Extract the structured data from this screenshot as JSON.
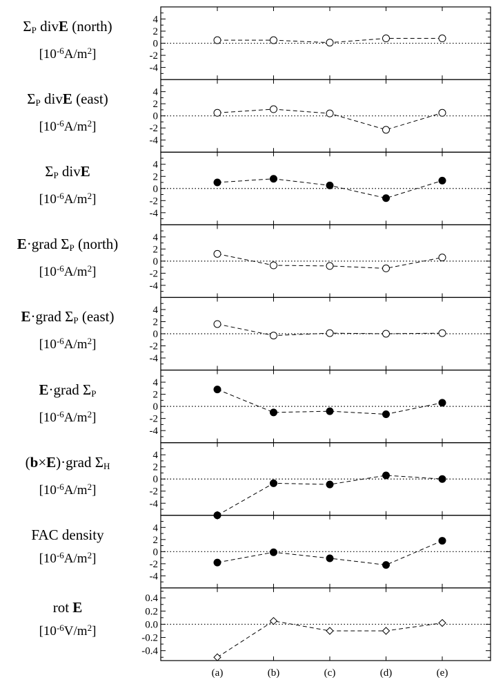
{
  "chart_data": {
    "type": "scatter",
    "categories": [
      "(a)",
      "(b)",
      "(c)",
      "(d)",
      "(e)"
    ],
    "panels": [
      {
        "id": "p1",
        "label": "Σ_P divE (north)",
        "label_parts": {
          "sym": "Σ",
          "sub": "P",
          "pre": " div",
          "bold": "E",
          "post": " (north)"
        },
        "unit": "[10^-6A/m^2]",
        "unit_parts": {
          "a": "[10",
          "sup1": "-6",
          "b": "A/m",
          "sup2": "2",
          "c": "]"
        },
        "ylim": [
          -6,
          6
        ],
        "ticks": [
          "-4",
          "-2",
          "0",
          "2",
          "4"
        ],
        "marker": "open-circle",
        "values": [
          0.5,
          0.5,
          0.1,
          0.8,
          0.8
        ]
      },
      {
        "id": "p2",
        "label": "Σ_P divE (east)",
        "label_parts": {
          "sym": "Σ",
          "sub": "P",
          "pre": " div",
          "bold": "E",
          "post": " (east)"
        },
        "unit": "[10^-6A/m^2]",
        "unit_parts": {
          "a": "[10",
          "sup1": "-6",
          "b": "A/m",
          "sup2": "2",
          "c": "]"
        },
        "ylim": [
          -6,
          6
        ],
        "ticks": [
          "-4",
          "-2",
          "0",
          "2",
          "4"
        ],
        "marker": "open-circle",
        "values": [
          0.5,
          1.1,
          0.4,
          -2.3,
          0.5
        ]
      },
      {
        "id": "p3",
        "label": "Σ_P divE",
        "label_parts": {
          "sym": "Σ",
          "sub": "P",
          "pre": " div",
          "bold": "E",
          "post": ""
        },
        "unit": "[10^-6A/m^2]",
        "unit_parts": {
          "a": "[10",
          "sup1": "-6",
          "b": "A/m",
          "sup2": "2",
          "c": "]"
        },
        "ylim": [
          -6,
          6
        ],
        "ticks": [
          "-4",
          "-2",
          "0",
          "2",
          "4"
        ],
        "marker": "filled-circle",
        "values": [
          1.0,
          1.6,
          0.5,
          -1.6,
          1.3
        ]
      },
      {
        "id": "p4",
        "label": "E·grad Σ_P (north)",
        "label_parts": {
          "bold": "E",
          "pre": "·grad ",
          "sym": "Σ",
          "sub": "P",
          "post": " (north)"
        },
        "unit": "[10^-6A/m^2]",
        "unit_parts": {
          "a": "[10",
          "sup1": "-6",
          "b": "A/m",
          "sup2": "2",
          "c": "]"
        },
        "ylim": [
          -6,
          6
        ],
        "ticks": [
          "-4",
          "-2",
          "0",
          "2",
          "4"
        ],
        "marker": "open-circle",
        "values": [
          1.2,
          -0.7,
          -0.8,
          -1.2,
          0.6
        ]
      },
      {
        "id": "p5",
        "label": "E·grad Σ_P (east)",
        "label_parts": {
          "bold": "E",
          "pre": "·grad ",
          "sym": "Σ",
          "sub": "P",
          "post": " (east)"
        },
        "unit": "[10^-6A/m^2]",
        "unit_parts": {
          "a": "[10",
          "sup1": "-6",
          "b": "A/m",
          "sup2": "2",
          "c": "]"
        },
        "ylim": [
          -6,
          6
        ],
        "ticks": [
          "-4",
          "-2",
          "0",
          "2",
          "4"
        ],
        "marker": "open-circle",
        "values": [
          1.6,
          -0.3,
          0.1,
          0.0,
          0.1
        ]
      },
      {
        "id": "p6",
        "label": "E·grad Σ_P",
        "label_parts": {
          "bold": "E",
          "pre": "·grad ",
          "sym": "Σ",
          "sub": "P",
          "post": ""
        },
        "unit": "[10^-6A/m^2]",
        "unit_parts": {
          "a": "[10",
          "sup1": "-6",
          "b": "A/m",
          "sup2": "2",
          "c": "]"
        },
        "ylim": [
          -6,
          6
        ],
        "ticks": [
          "-4",
          "-2",
          "0",
          "2",
          "4"
        ],
        "marker": "filled-circle",
        "values": [
          2.8,
          -1.0,
          -0.8,
          -1.3,
          0.6
        ]
      },
      {
        "id": "p7",
        "label": "(b×E)·grad Σ_H",
        "label_parts": {
          "open": "(",
          "bold1": "b",
          "times": "×",
          "bold": "E",
          "pre": ")·grad ",
          "sym": "Σ",
          "sub": "H",
          "post": ""
        },
        "unit": "[10^-6A/m^2]",
        "unit_parts": {
          "a": "[10",
          "sup1": "-6",
          "b": "A/m",
          "sup2": "2",
          "c": "]"
        },
        "ylim": [
          -6,
          6
        ],
        "ticks": [
          "-4",
          "-2",
          "0",
          "2",
          "4"
        ],
        "marker": "filled-circle",
        "values": [
          -6.0,
          -0.7,
          -0.9,
          0.6,
          0.0
        ]
      },
      {
        "id": "p8",
        "label": "FAC density",
        "label_parts": {
          "plain": "FAC density"
        },
        "unit": "[10^-6A/m^2]",
        "unit_parts": {
          "a": "[10",
          "sup1": "-6",
          "b": "A/m",
          "sup2": "2",
          "c": "]"
        },
        "ylim": [
          -6,
          6
        ],
        "ticks": [
          "-4",
          "-2",
          "0",
          "2",
          "4"
        ],
        "marker": "filled-circle",
        "values": [
          -1.8,
          -0.1,
          -1.1,
          -2.2,
          1.8
        ]
      },
      {
        "id": "p9",
        "label": "rot E",
        "label_parts": {
          "plain": "rot ",
          "bold": "E"
        },
        "unit": "[10^-6V/m^2]",
        "unit_parts": {
          "a": "[10",
          "sup1": "-6",
          "b": "V/m",
          "sup2": "2",
          "c": "]"
        },
        "ylim": [
          -0.55,
          0.55
        ],
        "ticks": [
          "-0.4",
          "-0.2",
          "0.0",
          "0.2",
          "0.4"
        ],
        "marker": "open-diamond",
        "values": [
          -0.5,
          0.05,
          -0.1,
          -0.1,
          0.02
        ]
      }
    ]
  }
}
